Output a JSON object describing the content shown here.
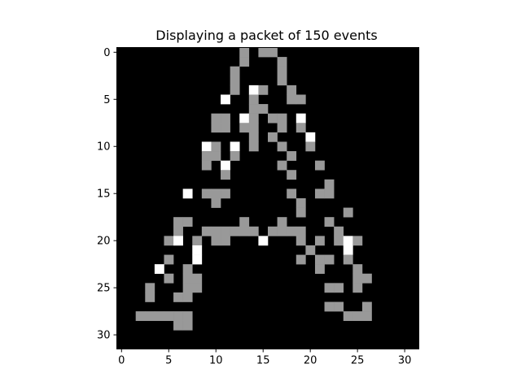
{
  "chart_data": {
    "type": "heatmap",
    "title": "Displaying a packet of 150 events",
    "xlabel": "",
    "ylabel": "",
    "grid_size": [
      32,
      32
    ],
    "x_ticks": [
      0,
      5,
      10,
      15,
      20,
      25,
      30
    ],
    "y_ticks": [
      0,
      5,
      10,
      15,
      20,
      25,
      30
    ],
    "x_tick_labels": [
      "0",
      "5",
      "10",
      "15",
      "20",
      "25",
      "30"
    ],
    "y_tick_labels": [
      "0",
      "5",
      "10",
      "15",
      "20",
      "25",
      "30"
    ],
    "xlim": [
      -0.5,
      31.5
    ],
    "ylim": [
      31.5,
      -0.5
    ],
    "grid": false,
    "value_levels": [
      0,
      1,
      2
    ],
    "colormap": {
      "0": "#000000",
      "1": "#999999",
      "2": "#ffffff"
    },
    "pixels": [
      {
        "x": 13,
        "y": 0,
        "v": 1
      },
      {
        "x": 15,
        "y": 0,
        "v": 1
      },
      {
        "x": 16,
        "y": 0,
        "v": 1
      },
      {
        "x": 13,
        "y": 1,
        "v": 1
      },
      {
        "x": 17,
        "y": 1,
        "v": 1
      },
      {
        "x": 12,
        "y": 2,
        "v": 1
      },
      {
        "x": 17,
        "y": 2,
        "v": 1
      },
      {
        "x": 12,
        "y": 3,
        "v": 1
      },
      {
        "x": 17,
        "y": 3,
        "v": 1
      },
      {
        "x": 12,
        "y": 4,
        "v": 1
      },
      {
        "x": 14,
        "y": 4,
        "v": 2
      },
      {
        "x": 15,
        "y": 4,
        "v": 1
      },
      {
        "x": 18,
        "y": 4,
        "v": 1
      },
      {
        "x": 11,
        "y": 5,
        "v": 2
      },
      {
        "x": 14,
        "y": 5,
        "v": 1
      },
      {
        "x": 18,
        "y": 5,
        "v": 1
      },
      {
        "x": 19,
        "y": 5,
        "v": 1
      },
      {
        "x": 14,
        "y": 6,
        "v": 1
      },
      {
        "x": 15,
        "y": 6,
        "v": 1
      },
      {
        "x": 10,
        "y": 7,
        "v": 1
      },
      {
        "x": 11,
        "y": 7,
        "v": 1
      },
      {
        "x": 13,
        "y": 7,
        "v": 2
      },
      {
        "x": 14,
        "y": 7,
        "v": 1
      },
      {
        "x": 16,
        "y": 7,
        "v": 1
      },
      {
        "x": 17,
        "y": 7,
        "v": 1
      },
      {
        "x": 19,
        "y": 7,
        "v": 2
      },
      {
        "x": 10,
        "y": 8,
        "v": 1
      },
      {
        "x": 11,
        "y": 8,
        "v": 1
      },
      {
        "x": 13,
        "y": 8,
        "v": 1
      },
      {
        "x": 14,
        "y": 8,
        "v": 1
      },
      {
        "x": 17,
        "y": 8,
        "v": 1
      },
      {
        "x": 19,
        "y": 8,
        "v": 1
      },
      {
        "x": 14,
        "y": 9,
        "v": 1
      },
      {
        "x": 16,
        "y": 9,
        "v": 1
      },
      {
        "x": 20,
        "y": 9,
        "v": 2
      },
      {
        "x": 9,
        "y": 10,
        "v": 2
      },
      {
        "x": 10,
        "y": 10,
        "v": 1
      },
      {
        "x": 12,
        "y": 10,
        "v": 2
      },
      {
        "x": 14,
        "y": 10,
        "v": 1
      },
      {
        "x": 17,
        "y": 10,
        "v": 1
      },
      {
        "x": 20,
        "y": 10,
        "v": 1
      },
      {
        "x": 9,
        "y": 11,
        "v": 1
      },
      {
        "x": 10,
        "y": 11,
        "v": 1
      },
      {
        "x": 12,
        "y": 11,
        "v": 1
      },
      {
        "x": 18,
        "y": 11,
        "v": 1
      },
      {
        "x": 9,
        "y": 12,
        "v": 1
      },
      {
        "x": 11,
        "y": 12,
        "v": 2
      },
      {
        "x": 17,
        "y": 12,
        "v": 1
      },
      {
        "x": 21,
        "y": 12,
        "v": 1
      },
      {
        "x": 11,
        "y": 13,
        "v": 1
      },
      {
        "x": 18,
        "y": 13,
        "v": 1
      },
      {
        "x": 22,
        "y": 14,
        "v": 1
      },
      {
        "x": 7,
        "y": 15,
        "v": 2
      },
      {
        "x": 9,
        "y": 15,
        "v": 1
      },
      {
        "x": 10,
        "y": 15,
        "v": 1
      },
      {
        "x": 11,
        "y": 15,
        "v": 1
      },
      {
        "x": 18,
        "y": 15,
        "v": 1
      },
      {
        "x": 21,
        "y": 15,
        "v": 1
      },
      {
        "x": 22,
        "y": 15,
        "v": 1
      },
      {
        "x": 10,
        "y": 16,
        "v": 1
      },
      {
        "x": 19,
        "y": 16,
        "v": 1
      },
      {
        "x": 19,
        "y": 17,
        "v": 1
      },
      {
        "x": 24,
        "y": 17,
        "v": 1
      },
      {
        "x": 6,
        "y": 18,
        "v": 1
      },
      {
        "x": 7,
        "y": 18,
        "v": 1
      },
      {
        "x": 13,
        "y": 18,
        "v": 1
      },
      {
        "x": 17,
        "y": 18,
        "v": 1
      },
      {
        "x": 22,
        "y": 18,
        "v": 1
      },
      {
        "x": 6,
        "y": 19,
        "v": 1
      },
      {
        "x": 9,
        "y": 19,
        "v": 1
      },
      {
        "x": 10,
        "y": 19,
        "v": 1
      },
      {
        "x": 11,
        "y": 19,
        "v": 1
      },
      {
        "x": 12,
        "y": 19,
        "v": 1
      },
      {
        "x": 13,
        "y": 19,
        "v": 1
      },
      {
        "x": 14,
        "y": 19,
        "v": 1
      },
      {
        "x": 16,
        "y": 19,
        "v": 1
      },
      {
        "x": 17,
        "y": 19,
        "v": 1
      },
      {
        "x": 18,
        "y": 19,
        "v": 1
      },
      {
        "x": 19,
        "y": 19,
        "v": 1
      },
      {
        "x": 23,
        "y": 19,
        "v": 1
      },
      {
        "x": 5,
        "y": 20,
        "v": 1
      },
      {
        "x": 6,
        "y": 20,
        "v": 2
      },
      {
        "x": 8,
        "y": 20,
        "v": 1
      },
      {
        "x": 10,
        "y": 20,
        "v": 1
      },
      {
        "x": 11,
        "y": 20,
        "v": 1
      },
      {
        "x": 15,
        "y": 20,
        "v": 2
      },
      {
        "x": 19,
        "y": 20,
        "v": 1
      },
      {
        "x": 21,
        "y": 20,
        "v": 1
      },
      {
        "x": 23,
        "y": 20,
        "v": 1
      },
      {
        "x": 24,
        "y": 20,
        "v": 2
      },
      {
        "x": 25,
        "y": 20,
        "v": 1
      },
      {
        "x": 8,
        "y": 21,
        "v": 2
      },
      {
        "x": 20,
        "y": 21,
        "v": 1
      },
      {
        "x": 24,
        "y": 21,
        "v": 2
      },
      {
        "x": 5,
        "y": 22,
        "v": 1
      },
      {
        "x": 8,
        "y": 22,
        "v": 2
      },
      {
        "x": 19,
        "y": 22,
        "v": 1
      },
      {
        "x": 21,
        "y": 22,
        "v": 1
      },
      {
        "x": 22,
        "y": 22,
        "v": 1
      },
      {
        "x": 24,
        "y": 22,
        "v": 1
      },
      {
        "x": 4,
        "y": 23,
        "v": 2
      },
      {
        "x": 7,
        "y": 23,
        "v": 1
      },
      {
        "x": 21,
        "y": 23,
        "v": 1
      },
      {
        "x": 25,
        "y": 23,
        "v": 1
      },
      {
        "x": 5,
        "y": 24,
        "v": 1
      },
      {
        "x": 7,
        "y": 24,
        "v": 1
      },
      {
        "x": 8,
        "y": 24,
        "v": 1
      },
      {
        "x": 25,
        "y": 24,
        "v": 1
      },
      {
        "x": 26,
        "y": 24,
        "v": 1
      },
      {
        "x": 3,
        "y": 25,
        "v": 1
      },
      {
        "x": 7,
        "y": 25,
        "v": 1
      },
      {
        "x": 8,
        "y": 25,
        "v": 1
      },
      {
        "x": 22,
        "y": 25,
        "v": 1
      },
      {
        "x": 23,
        "y": 25,
        "v": 1
      },
      {
        "x": 25,
        "y": 25,
        "v": 1
      },
      {
        "x": 3,
        "y": 26,
        "v": 1
      },
      {
        "x": 6,
        "y": 26,
        "v": 1
      },
      {
        "x": 7,
        "y": 26,
        "v": 1
      },
      {
        "x": 22,
        "y": 27,
        "v": 1
      },
      {
        "x": 23,
        "y": 27,
        "v": 1
      },
      {
        "x": 26,
        "y": 27,
        "v": 1
      },
      {
        "x": 2,
        "y": 28,
        "v": 1
      },
      {
        "x": 3,
        "y": 28,
        "v": 1
      },
      {
        "x": 4,
        "y": 28,
        "v": 1
      },
      {
        "x": 5,
        "y": 28,
        "v": 1
      },
      {
        "x": 6,
        "y": 28,
        "v": 1
      },
      {
        "x": 7,
        "y": 28,
        "v": 1
      },
      {
        "x": 24,
        "y": 28,
        "v": 1
      },
      {
        "x": 25,
        "y": 28,
        "v": 1
      },
      {
        "x": 26,
        "y": 28,
        "v": 1
      },
      {
        "x": 6,
        "y": 29,
        "v": 1
      },
      {
        "x": 7,
        "y": 29,
        "v": 1
      }
    ]
  }
}
